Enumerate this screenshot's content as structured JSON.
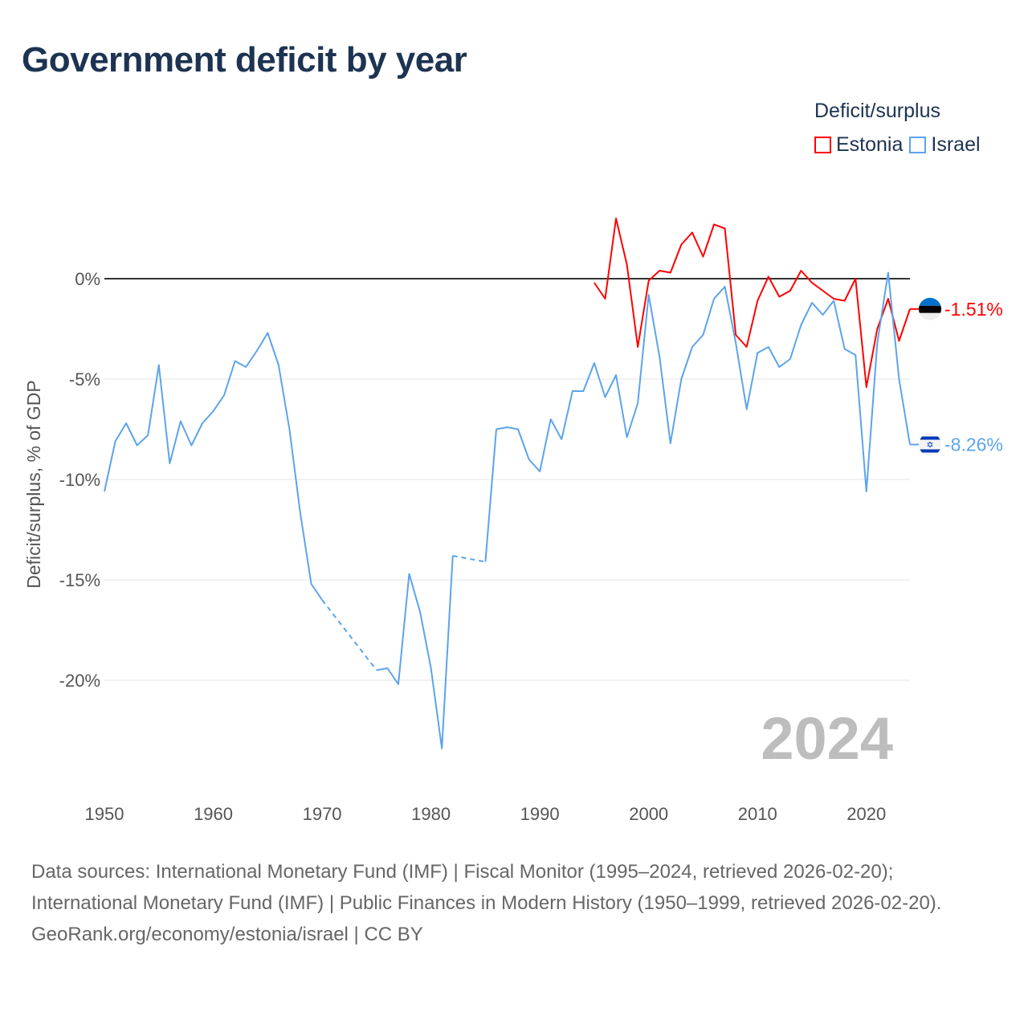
{
  "title": "Government deficit by year",
  "legend": {
    "title": "Deficit/surplus",
    "items": [
      {
        "name": "Estonia",
        "color": "#ff0000"
      },
      {
        "name": "Israel",
        "color": "#5ca4eb"
      }
    ]
  },
  "chart_data": {
    "type": "line",
    "title": "Government deficit by year",
    "xlabel": "",
    "ylabel": "Deficit/surplus, % of GDP",
    "xlim": [
      1950,
      2024
    ],
    "ylim": [
      -25,
      4
    ],
    "x_ticks": [
      "1950",
      "1960",
      "1970",
      "1980",
      "1990",
      "2000",
      "2010",
      "2020"
    ],
    "y_ticks": [
      {
        "value": 0,
        "label": "0%"
      },
      {
        "value": -5,
        "label": "-5%"
      },
      {
        "value": -10,
        "label": "-10%"
      },
      {
        "value": -15,
        "label": "-15%"
      },
      {
        "value": -20,
        "label": "-20%"
      }
    ],
    "start_year": 1950,
    "series": [
      {
        "name": "Estonia",
        "color": "#ff0000",
        "end_label": "-1.51%",
        "values": [
          null,
          null,
          null,
          null,
          null,
          null,
          null,
          null,
          null,
          null,
          null,
          null,
          null,
          null,
          null,
          null,
          null,
          null,
          null,
          null,
          null,
          null,
          null,
          null,
          null,
          null,
          null,
          null,
          null,
          null,
          null,
          null,
          null,
          null,
          null,
          null,
          null,
          null,
          null,
          null,
          null,
          null,
          null,
          null,
          null,
          -0.2,
          -1.0,
          3.0,
          0.7,
          -3.4,
          -0.1,
          0.4,
          0.3,
          1.7,
          2.3,
          1.1,
          2.7,
          2.5,
          -2.8,
          -3.4,
          -1.1,
          0.1,
          -0.9,
          -0.6,
          0.4,
          -0.2,
          -0.6,
          -1.0,
          -1.1,
          0.0,
          -5.4,
          -2.5,
          -1.0,
          -3.1,
          -1.51
        ]
      },
      {
        "name": "Israel",
        "color": "#5ca4eb",
        "end_label": "-8.26%",
        "values": [
          -10.6,
          -8.1,
          -7.2,
          -8.3,
          -7.8,
          -4.3,
          -9.2,
          -7.1,
          -8.3,
          -7.2,
          -6.6,
          -5.8,
          -4.1,
          -4.4,
          -3.6,
          -2.7,
          -4.3,
          -7.5,
          -11.7,
          -15.2,
          -16.0,
          null,
          null,
          null,
          null,
          -19.5,
          -19.4,
          -20.2,
          -14.7,
          -16.6,
          -19.4,
          -23.4,
          -13.8,
          null,
          null,
          -14.1,
          -7.5,
          -7.4,
          -7.5,
          -9.0,
          -9.6,
          -7.0,
          -8.0,
          -5.6,
          -5.6,
          -4.2,
          -5.9,
          -4.8,
          -7.9,
          -6.2,
          -0.8,
          -3.9,
          -8.2,
          -5.0,
          -3.4,
          -2.8,
          -1.0,
          -0.4,
          -3.2,
          -6.5,
          -3.7,
          -3.4,
          -4.4,
          -4.0,
          -2.3,
          -1.2,
          -1.8,
          -1.1,
          -3.5,
          -3.8,
          -10.6,
          -3.2,
          0.3,
          -5.0,
          -8.26
        ]
      }
    ],
    "year_label": "2024",
    "grid": true
  },
  "footer": {
    "sources": "Data sources: International Monetary Fund (IMF) | Fiscal Monitor (1995–2024, retrieved 2026-02-20); International Monetary Fund (IMF) | Public Finances in Modern History (1950–1999, retrieved 2026-02-20).",
    "credit": "GeoRank.org/economy/estonia/israel | CC BY"
  }
}
